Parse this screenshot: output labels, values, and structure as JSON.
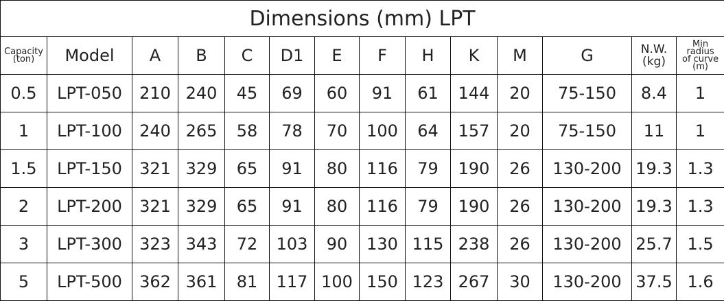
{
  "title": "Dimensions (mm) LPT",
  "table": {
    "header": [
      "Capacity\n(ton)",
      "Model",
      "A",
      "B",
      "C",
      "D1",
      "E",
      "F",
      "H",
      "K",
      "M",
      "G",
      "N.W.\n(kg)",
      "Min\nradius\nof curve\n(m)"
    ],
    "rows": [
      [
        "0.5",
        "LPT-050",
        "210",
        "240",
        "45",
        "69",
        "60",
        "91",
        "61",
        "144",
        "20",
        "75-150",
        "8.4",
        "1"
      ],
      [
        "1",
        "LPT-100",
        "240",
        "265",
        "58",
        "78",
        "70",
        "100",
        "64",
        "157",
        "20",
        "75-150",
        "11",
        "1"
      ],
      [
        "1.5",
        "LPT-150",
        "321",
        "329",
        "65",
        "91",
        "80",
        "116",
        "79",
        "190",
        "26",
        "130-200",
        "19.3",
        "1.3"
      ],
      [
        "2",
        "LPT-200",
        "321",
        "329",
        "65",
        "91",
        "80",
        "116",
        "79",
        "190",
        "26",
        "130-200",
        "19.3",
        "1.3"
      ],
      [
        "3",
        "LPT-300",
        "323",
        "343",
        "72",
        "103",
        "90",
        "130",
        "115",
        "238",
        "26",
        "130-200",
        "25.7",
        "1.5"
      ],
      [
        "5",
        "LPT-500",
        "362",
        "361",
        "81",
        "117",
        "100",
        "150",
        "123",
        "267",
        "30",
        "130-200",
        "37.5",
        "1.6"
      ]
    ]
  }
}
